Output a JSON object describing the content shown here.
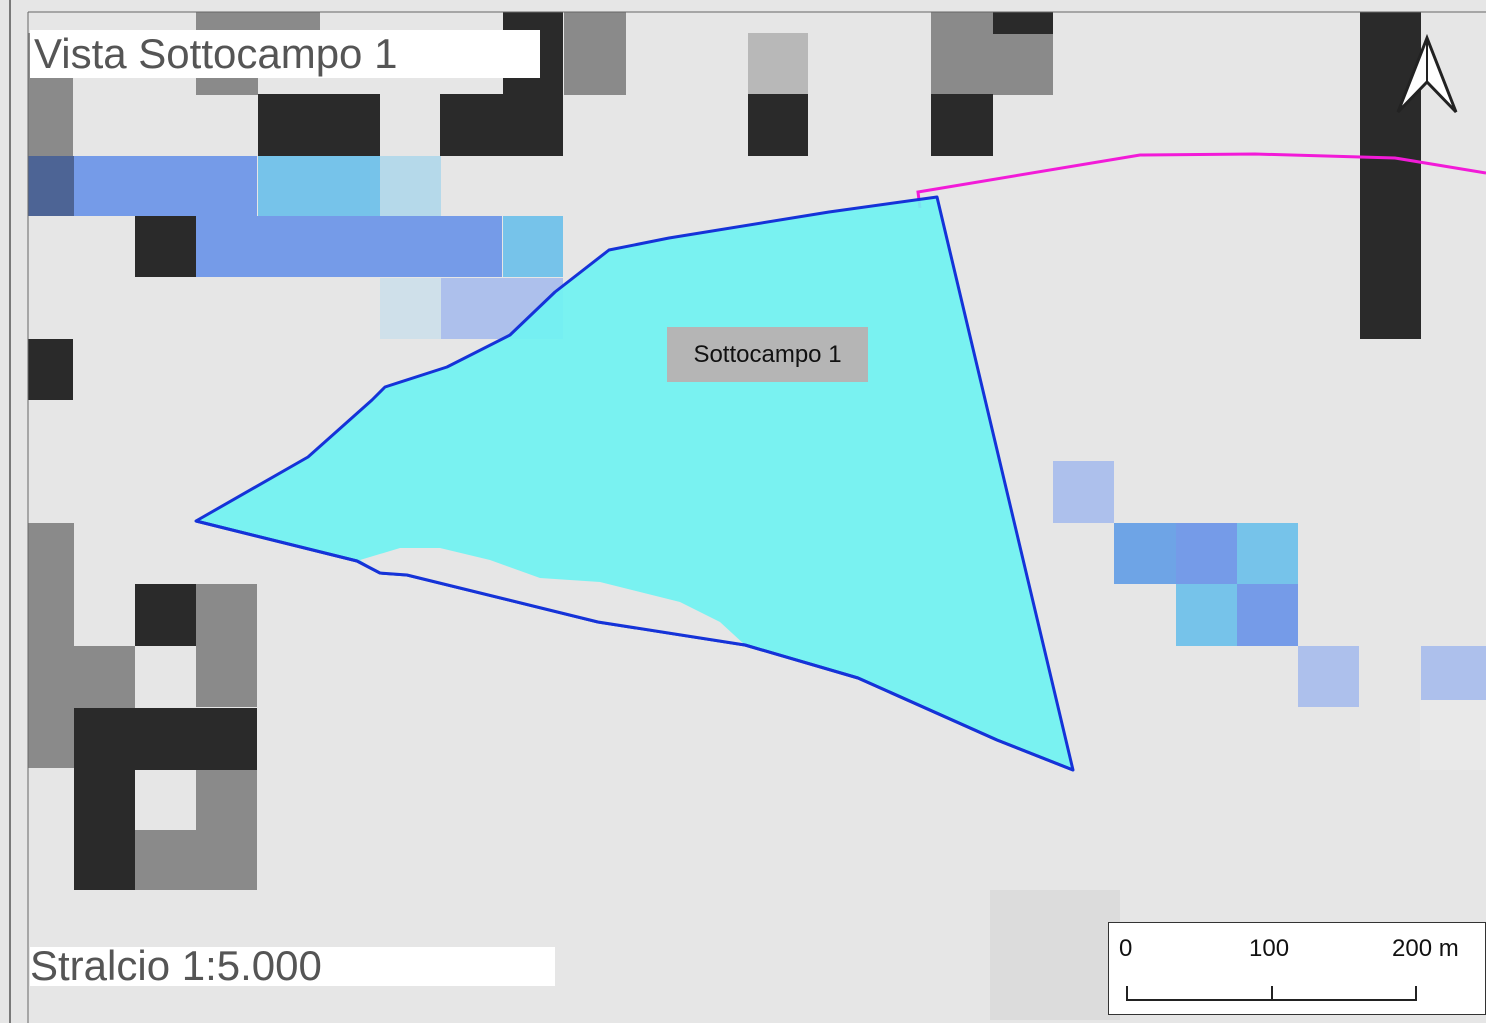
{
  "map": {
    "title": "Vista Sottocampo 1",
    "scale_text": "Stralcio 1:5.000",
    "feature_label": "Sottocampo 1",
    "north_arrow_icon": "north-arrow-icon",
    "scale_bar": {
      "labels": [
        "0",
        "100",
        "200 m"
      ]
    },
    "colors": {
      "background_raster": "#e6e6e6",
      "dark_cell": "#2a2a2a",
      "gray_cell": "#8a8a8a",
      "light_gray_cell": "#b8b8b8",
      "blue_cell": "#759be8",
      "light_blue_cell": "#76c3ea",
      "pale_blue_cell": "#adc0ec",
      "navy_cell": "#4d6495",
      "polygon_fill": "#70f3f2",
      "polygon_outline": "#1533d8",
      "boundary_line": "#f21bd8"
    }
  }
}
